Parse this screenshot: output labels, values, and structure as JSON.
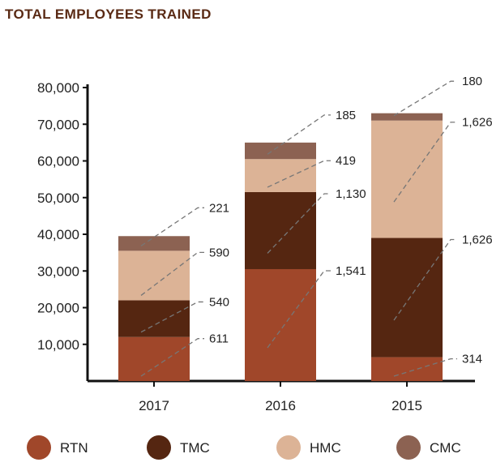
{
  "chart_data": {
    "type": "bar",
    "stacked": true,
    "title": "TOTAL EMPLOYEES TRAINED",
    "categories": [
      "2017",
      "2016",
      "2015"
    ],
    "series": [
      {
        "name": "RTN",
        "color": "#a0472a",
        "values": [
          12000,
          30500,
          6500
        ],
        "labels": [
          "611",
          "1,541",
          "314"
        ]
      },
      {
        "name": "TMC",
        "color": "#552611",
        "values": [
          10000,
          21000,
          32500
        ],
        "labels": [
          "540",
          "1,130",
          "1,626"
        ]
      },
      {
        "name": "HMC",
        "color": "#dcb396",
        "values": [
          13500,
          9000,
          32000
        ],
        "labels": [
          "590",
          "419",
          "1,626"
        ]
      },
      {
        "name": "CMC",
        "color": "#8c6252",
        "values": [
          4000,
          4500,
          2000
        ],
        "labels": [
          "221",
          "185",
          "180"
        ]
      }
    ],
    "yticks": [
      "10,000",
      "20,000",
      "30,000",
      "40,000",
      "50,000",
      "60,000",
      "70,000",
      "80,000"
    ],
    "ylim": [
      0,
      80000
    ],
    "grid": false,
    "legend_position": "bottom"
  }
}
